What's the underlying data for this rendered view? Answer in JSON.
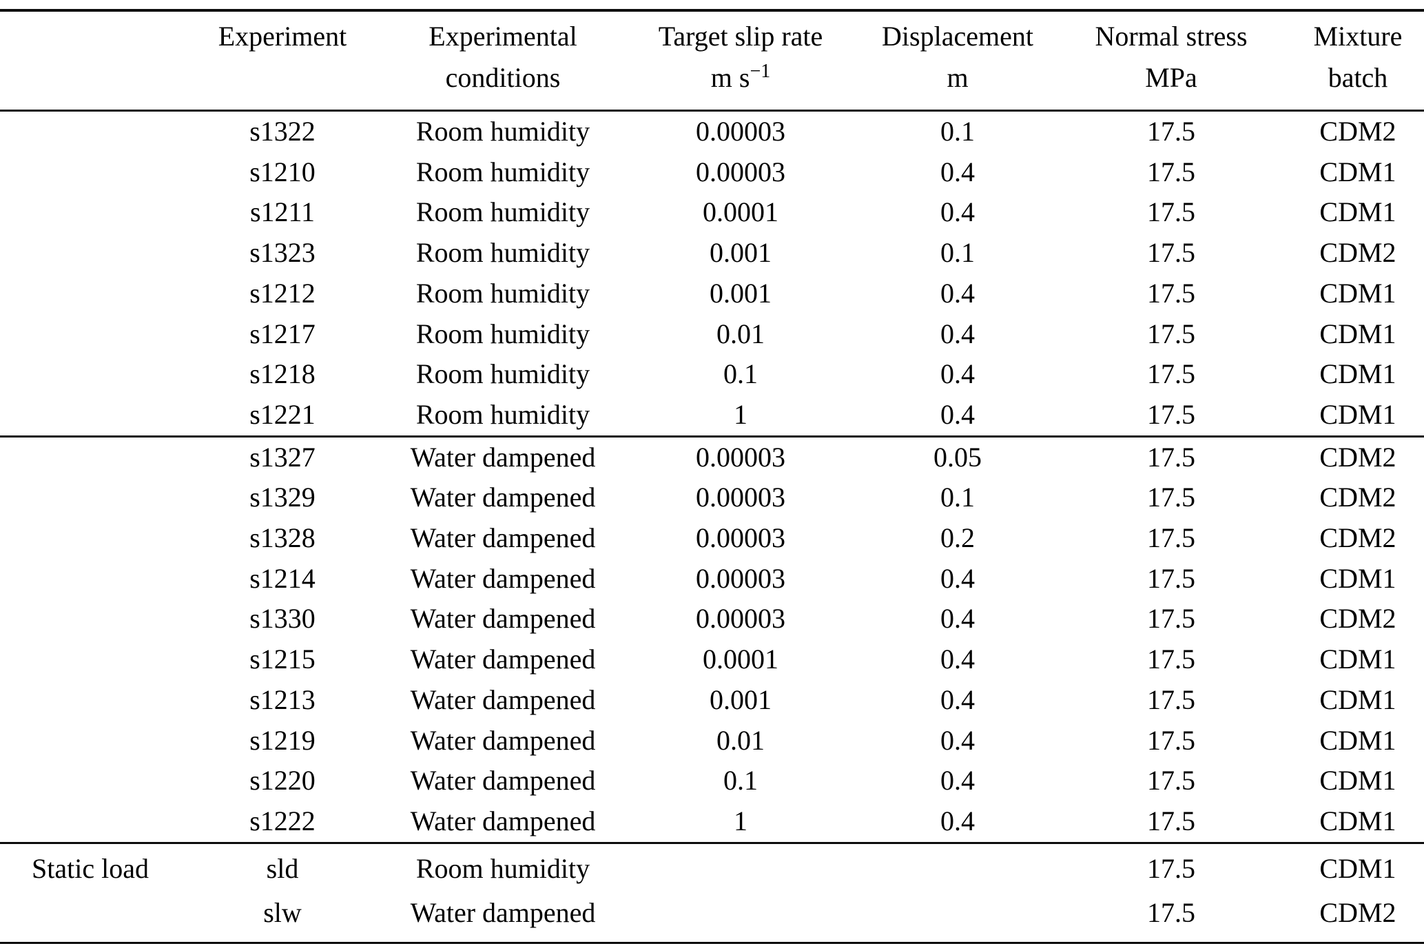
{
  "table": {
    "columns": [
      {
        "line1": "",
        "line2": ""
      },
      {
        "line1": "Experiment",
        "line2": ""
      },
      {
        "line1": "Experimental",
        "line2": "conditions"
      },
      {
        "line1": "Target slip rate",
        "line2": "m s",
        "line2_sup": "−1"
      },
      {
        "line1": "Displacement",
        "line2": "m"
      },
      {
        "line1": "Normal stress",
        "line2": "MPa"
      },
      {
        "line1": "Mixture",
        "line2": "batch"
      }
    ],
    "column_keys": [
      "label",
      "experiment",
      "conditions",
      "slip_rate",
      "displacement",
      "normal_stress",
      "mixture_batch"
    ],
    "groups": [
      {
        "name": "room-humidity-group",
        "rows": [
          {
            "label": "",
            "experiment": "s1322",
            "conditions": "Room humidity",
            "slip_rate": "0.00003",
            "displacement": "0.1",
            "normal_stress": "17.5",
            "mixture_batch": "CDM2"
          },
          {
            "label": "",
            "experiment": "s1210",
            "conditions": "Room humidity",
            "slip_rate": "0.00003",
            "displacement": "0.4",
            "normal_stress": "17.5",
            "mixture_batch": "CDM1"
          },
          {
            "label": "",
            "experiment": "s1211",
            "conditions": "Room humidity",
            "slip_rate": "0.0001",
            "displacement": "0.4",
            "normal_stress": "17.5",
            "mixture_batch": "CDM1"
          },
          {
            "label": "",
            "experiment": "s1323",
            "conditions": "Room humidity",
            "slip_rate": "0.001",
            "displacement": "0.1",
            "normal_stress": "17.5",
            "mixture_batch": "CDM2"
          },
          {
            "label": "",
            "experiment": "s1212",
            "conditions": "Room humidity",
            "slip_rate": "0.001",
            "displacement": "0.4",
            "normal_stress": "17.5",
            "mixture_batch": "CDM1"
          },
          {
            "label": "",
            "experiment": "s1217",
            "conditions": "Room humidity",
            "slip_rate": "0.01",
            "displacement": "0.4",
            "normal_stress": "17.5",
            "mixture_batch": "CDM1"
          },
          {
            "label": "",
            "experiment": "s1218",
            "conditions": "Room humidity",
            "slip_rate": "0.1",
            "displacement": "0.4",
            "normal_stress": "17.5",
            "mixture_batch": "CDM1"
          },
          {
            "label": "",
            "experiment": "s1221",
            "conditions": "Room humidity",
            "slip_rate": "1",
            "displacement": "0.4",
            "normal_stress": "17.5",
            "mixture_batch": "CDM1"
          }
        ]
      },
      {
        "name": "water-dampened-group",
        "rows": [
          {
            "label": "",
            "experiment": "s1327",
            "conditions": "Water dampened",
            "slip_rate": "0.00003",
            "displacement": "0.05",
            "normal_stress": "17.5",
            "mixture_batch": "CDM2"
          },
          {
            "label": "",
            "experiment": "s1329",
            "conditions": "Water dampened",
            "slip_rate": "0.00003",
            "displacement": "0.1",
            "normal_stress": "17.5",
            "mixture_batch": "CDM2"
          },
          {
            "label": "",
            "experiment": "s1328",
            "conditions": "Water dampened",
            "slip_rate": "0.00003",
            "displacement": "0.2",
            "normal_stress": "17.5",
            "mixture_batch": "CDM2"
          },
          {
            "label": "",
            "experiment": "s1214",
            "conditions": "Water dampened",
            "slip_rate": "0.00003",
            "displacement": "0.4",
            "normal_stress": "17.5",
            "mixture_batch": "CDM1"
          },
          {
            "label": "",
            "experiment": "s1330",
            "conditions": "Water dampened",
            "slip_rate": "0.00003",
            "displacement": "0.4",
            "normal_stress": "17.5",
            "mixture_batch": "CDM2"
          },
          {
            "label": "",
            "experiment": "s1215",
            "conditions": "Water dampened",
            "slip_rate": "0.0001",
            "displacement": "0.4",
            "normal_stress": "17.5",
            "mixture_batch": "CDM1"
          },
          {
            "label": "",
            "experiment": "s1213",
            "conditions": "Water dampened",
            "slip_rate": "0.001",
            "displacement": "0.4",
            "normal_stress": "17.5",
            "mixture_batch": "CDM1"
          },
          {
            "label": "",
            "experiment": "s1219",
            "conditions": "Water dampened",
            "slip_rate": "0.01",
            "displacement": "0.4",
            "normal_stress": "17.5",
            "mixture_batch": "CDM1"
          },
          {
            "label": "",
            "experiment": "s1220",
            "conditions": "Water dampened",
            "slip_rate": "0.1",
            "displacement": "0.4",
            "normal_stress": "17.5",
            "mixture_batch": "CDM1"
          },
          {
            "label": "",
            "experiment": "s1222",
            "conditions": "Water dampened",
            "slip_rate": "1",
            "displacement": "0.4",
            "normal_stress": "17.5",
            "mixture_batch": "CDM1"
          }
        ]
      },
      {
        "name": "static-load-group",
        "rows": [
          {
            "label": "Static load",
            "experiment": "sld",
            "conditions": "Room humidity",
            "slip_rate": "",
            "displacement": "",
            "normal_stress": "17.5",
            "mixture_batch": "CDM1"
          },
          {
            "label": "",
            "experiment": "slw",
            "conditions": "Water dampened",
            "slip_rate": "",
            "displacement": "",
            "normal_stress": "17.5",
            "mixture_batch": "CDM2"
          }
        ]
      }
    ]
  }
}
